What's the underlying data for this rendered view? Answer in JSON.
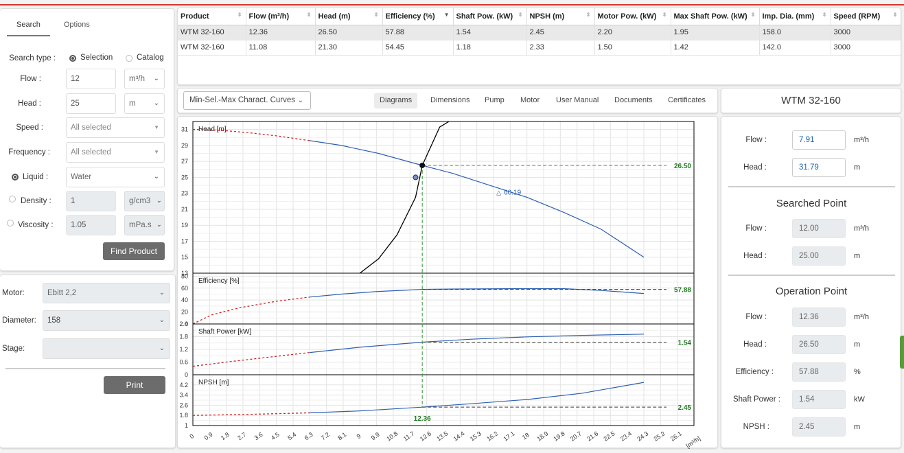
{
  "search_panel": {
    "tabs": [
      "Search",
      "Options"
    ],
    "search_type_label": "Search type :",
    "search_type_options": [
      "Selection",
      "Catalog"
    ],
    "flow": {
      "label": "Flow :",
      "value": "12",
      "unit": "m³/h"
    },
    "head": {
      "label": "Head :",
      "value": "25",
      "unit": "m"
    },
    "speed": {
      "label": "Speed :",
      "value": "All selected"
    },
    "frequency": {
      "label": "Frequency :",
      "value": "All selected"
    },
    "liquid": {
      "label": "Liquid :",
      "value": "Water"
    },
    "density": {
      "label": "Density :",
      "value": "1",
      "unit": "g/cm3"
    },
    "viscosity": {
      "label": "Viscosity :",
      "value": "1.05",
      "unit": "mPa.s"
    },
    "find_button": "Find Product"
  },
  "motor_panel": {
    "motor": {
      "label": "Motor:",
      "value": "Ebitt 2,2"
    },
    "diameter": {
      "label": "Diameter:",
      "value": "158"
    },
    "stage": {
      "label": "Stage:",
      "value": ""
    },
    "print_button": "Print"
  },
  "results_table": {
    "columns": [
      "Product",
      "Flow (m³/h)",
      "Head (m)",
      "Efficiency (%)",
      "Shaft Pow. (kW)",
      "NPSH (m)",
      "Motor Pow. (kW)",
      "Max Shaft Pow. (kW)",
      "Imp. Dia. (mm)",
      "Speed (RPM)"
    ],
    "rows": [
      [
        "WTM 32-160",
        "12.36",
        "26.50",
        "57.88",
        "1.54",
        "2.45",
        "2.20",
        "1.95",
        "158.0",
        "3000"
      ],
      [
        "WTM 32-160",
        "11.08",
        "21.30",
        "54.45",
        "1.18",
        "2.33",
        "1.50",
        "1.42",
        "142.0",
        "3000"
      ]
    ]
  },
  "diagram_toolbar": {
    "curve_select": "Min-Sel.-Max Charact. Curves",
    "tabs": [
      "Diagrams",
      "Dimensions",
      "Pump",
      "Motor",
      "User Manual",
      "Documents",
      "Certificates"
    ]
  },
  "product_title": "WTM 32-160",
  "right_panel": {
    "top": {
      "flow": {
        "label": "Flow :",
        "value": "7.91",
        "unit": "m³/h"
      },
      "head": {
        "label": "Head :",
        "value": "31.79",
        "unit": "m"
      }
    },
    "searched_point": {
      "title": "Searched Point",
      "flow": {
        "label": "Flow :",
        "value": "12.00",
        "unit": "m³/h"
      },
      "head": {
        "label": "Head :",
        "value": "25.00",
        "unit": "m"
      }
    },
    "operation_point": {
      "title": "Operation Point",
      "flow": {
        "label": "Flow :",
        "value": "12.36",
        "unit": "m³/h"
      },
      "head": {
        "label": "Head :",
        "value": "26.50",
        "unit": "m"
      },
      "efficiency": {
        "label": "Efficiency :",
        "value": "57.88",
        "unit": "%"
      },
      "shaft_power": {
        "label": "Shaft Power :",
        "value": "1.54",
        "unit": "kW"
      },
      "npsh": {
        "label": "NPSH :",
        "value": "2.45",
        "unit": "m"
      }
    }
  },
  "chart_data": {
    "type": "line",
    "x_ticks": [
      "0",
      "0.9",
      "1.8",
      "2.7",
      "3.6",
      "4.5",
      "5.4",
      "6.3",
      "7.2",
      "8.1",
      "9",
      "9.9",
      "10.8",
      "11.7",
      "12.6",
      "13.5",
      "14.4",
      "15.3",
      "16.2",
      "17.1",
      "18",
      "18.9",
      "19.8",
      "20.7",
      "21.6",
      "22.5",
      "23.4",
      "24.3",
      "25.2",
      "26.1"
    ],
    "x_unit": "[m³/h]",
    "xlim": [
      0,
      27
    ],
    "operating_flow": 12.36,
    "operating_flow_label": "12.36",
    "colors": {
      "curve": "#2b5fb3",
      "extrapolated": "#cc2222",
      "guide": "#2f9a3a",
      "system": "#000000"
    },
    "subplots": [
      {
        "name": "head",
        "ylabel": "Head [m]",
        "ylim": [
          13,
          32
        ],
        "y_ticks": [
          "13",
          "15",
          "17",
          "19",
          "21",
          "23",
          "25",
          "27",
          "29",
          "31"
        ],
        "y_tick_values": [
          13,
          15,
          17,
          19,
          21,
          23,
          25,
          27,
          29,
          31
        ],
        "extrapolated_curve": [
          [
            0,
            31.0
          ],
          [
            1.5,
            30.9
          ],
          [
            3,
            30.6
          ],
          [
            4.5,
            30.2
          ],
          [
            6.3,
            29.6
          ]
        ],
        "curve": [
          [
            6.3,
            29.6
          ],
          [
            8,
            29.0
          ],
          [
            10,
            28.0
          ],
          [
            12.36,
            26.5
          ],
          [
            14,
            25.5
          ],
          [
            16,
            24.0
          ],
          [
            18,
            22.5
          ],
          [
            20,
            20.6
          ],
          [
            22,
            18.5
          ],
          [
            24.3,
            15.0
          ]
        ],
        "system_curve": [
          [
            9,
            13.0
          ],
          [
            10,
            14.8
          ],
          [
            11,
            17.8
          ],
          [
            12,
            22.5
          ],
          [
            12.36,
            26.5
          ],
          [
            13.3,
            31.3
          ],
          [
            13.8,
            32.0
          ]
        ],
        "operating_value": 26.5,
        "operating_label": "26.50",
        "searched_point": [
          12.0,
          25.0
        ],
        "efficiency_marker": {
          "x": 16.5,
          "y": 23.2,
          "label": "60.19"
        }
      },
      {
        "name": "efficiency",
        "ylabel": "Efficiency [%]",
        "ylim": [
          0,
          85
        ],
        "y_ticks": [
          "0",
          "20",
          "40",
          "60",
          "80"
        ],
        "y_tick_values": [
          0,
          20,
          40,
          60,
          80
        ],
        "extrapolated_curve": [
          [
            0,
            0
          ],
          [
            1,
            15
          ],
          [
            2.5,
            27
          ],
          [
            4.5,
            38
          ],
          [
            6.3,
            45
          ]
        ],
        "curve": [
          [
            6.3,
            45
          ],
          [
            8,
            50
          ],
          [
            10,
            54.5
          ],
          [
            12.36,
            57.88
          ],
          [
            14,
            58.5
          ],
          [
            17,
            59
          ],
          [
            20,
            59
          ],
          [
            22,
            56
          ],
          [
            24.3,
            51
          ]
        ],
        "operating_value": 57.88,
        "operating_label": "57.88"
      },
      {
        "name": "shaft_power",
        "ylabel": "Shaft Power [kW]",
        "ylim": [
          0,
          2.4
        ],
        "y_ticks": [
          "0",
          "0.6",
          "1.2",
          "1.8",
          "2.4"
        ],
        "y_tick_values": [
          0,
          0.6,
          1.2,
          1.8,
          2.4
        ],
        "extrapolated_curve": [
          [
            0,
            0.4
          ],
          [
            2,
            0.62
          ],
          [
            4,
            0.82
          ],
          [
            6.3,
            1.05
          ]
        ],
        "curve": [
          [
            6.3,
            1.05
          ],
          [
            9,
            1.3
          ],
          [
            12.36,
            1.54
          ],
          [
            15,
            1.68
          ],
          [
            18,
            1.79
          ],
          [
            21,
            1.86
          ],
          [
            24.3,
            1.92
          ]
        ],
        "operating_value": 1.54,
        "operating_label": "1.54"
      },
      {
        "name": "npsh",
        "ylabel": "NPSH [m]",
        "ylim": [
          1,
          5.0
        ],
        "y_ticks": [
          "1",
          "1.8",
          "2.6",
          "3.4",
          "4.2"
        ],
        "y_tick_values": [
          1,
          1.8,
          2.6,
          3.4,
          4.2
        ],
        "extrapolated_curve": [
          [
            0,
            1.8
          ],
          [
            3,
            1.88
          ],
          [
            6.3,
            2.0
          ]
        ],
        "curve": [
          [
            6.3,
            2.0
          ],
          [
            9,
            2.15
          ],
          [
            12.36,
            2.45
          ],
          [
            15,
            2.72
          ],
          [
            18,
            3.05
          ],
          [
            21,
            3.55
          ],
          [
            24.3,
            4.4
          ]
        ],
        "operating_value": 2.45,
        "operating_label": "2.45"
      }
    ]
  }
}
